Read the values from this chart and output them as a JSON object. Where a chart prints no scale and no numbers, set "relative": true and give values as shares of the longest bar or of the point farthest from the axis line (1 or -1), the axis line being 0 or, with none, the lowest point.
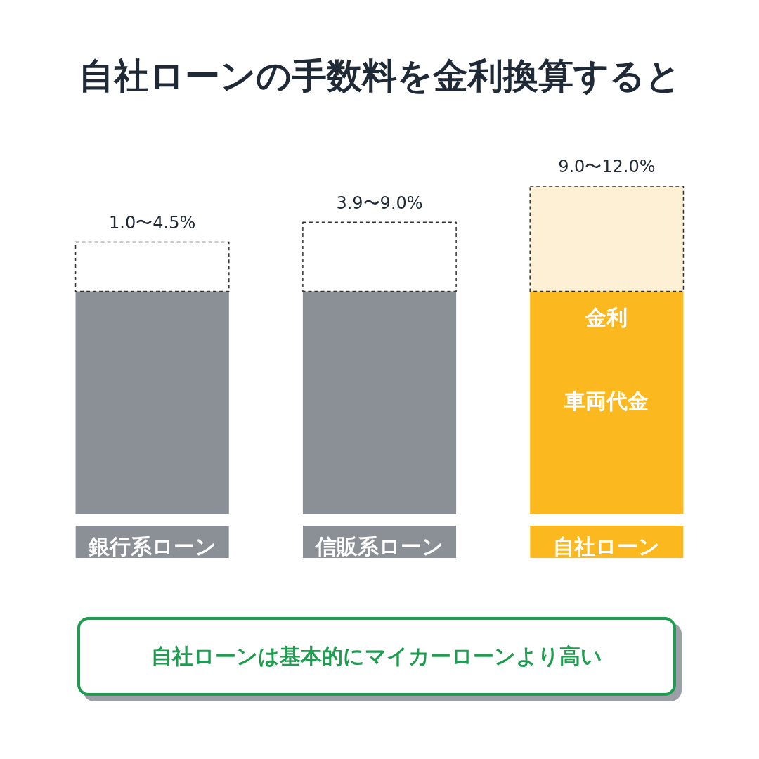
{
  "chart_data": {
    "type": "bar",
    "title": "自社ローンの手数料を金利換算すると",
    "relative": true,
    "stacked": true,
    "categories": [
      "銀行系ローン",
      "信販系ローン",
      "自社ローン"
    ],
    "series": [
      {
        "colors": [
          "#8b9097",
          "#8b9097",
          "#fbb91f"
        ],
        "values": [
          0.68,
          0.68,
          0.68
        ]
      },
      {
        "colors": [
          "#ffffff",
          "#ffffff",
          "#fdf0d5"
        ],
        "values": [
          0.15,
          0.21,
          0.32
        ]
      }
    ],
    "annotations": [
      {
        "text": "1.0〜4.5%",
        "x": "銀行系ローン",
        "y": 0.83
      },
      {
        "text": "3.9〜9.0%",
        "x": "信販系ローン",
        "y": 0.89
      },
      {
        "text": "9.0〜12.0%",
        "x": "自社ローン",
        "y": 1.0
      },
      "金利",
      "車両代金",
      "自社ローンは基本的にマイカーローンより高い"
    ]
  }
}
